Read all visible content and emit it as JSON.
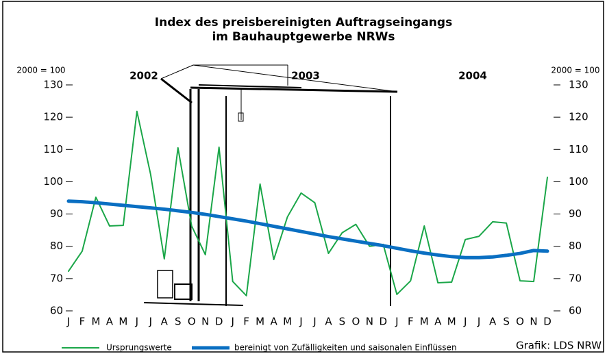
{
  "chart_data": {
    "type": "line",
    "title": "Index des preisbereinigten Auftragseingangs",
    "subtitle": "im Bauhauptgewerbe NRWs",
    "y_label": "2000 = 100",
    "y2_label": "2000 = 100",
    "annotations": [
      "2002",
      "2003",
      "2004"
    ],
    "source": "Grafik: LDS NRW",
    "categories": [
      "J",
      "F",
      "M",
      "A",
      "M",
      "J",
      "J",
      "A",
      "S",
      "O",
      "N",
      "D",
      "J",
      "F",
      "M",
      "A",
      "M",
      "J",
      "J",
      "A",
      "S",
      "O",
      "N",
      "D",
      "J",
      "F",
      "M",
      "A",
      "M",
      "J",
      "J",
      "A",
      "S",
      "O",
      "N",
      "D"
    ],
    "series": [
      {
        "name": "Ursprungswerte",
        "color": "#1aa648",
        "values": [
          72.3,
          78.5,
          95.2,
          86.3,
          86.5,
          121.8,
          102.3,
          76.1,
          110.5,
          86.3,
          77.4,
          110.7,
          69.1,
          64.7,
          99.3,
          75.9,
          89.1,
          96.5,
          93.5,
          77.8,
          84.2,
          86.8,
          80,
          80.6,
          65.1,
          69.3,
          86.3,
          68.7,
          68.9,
          82.1,
          83.1,
          87.6,
          87.2,
          69.3,
          69.1,
          101.4
        ]
      },
      {
        "name": "bereinigt von Zufälligkeiten und saisonalen Einflüssen",
        "color": "#0a6fc2",
        "values": [
          94,
          93.8,
          93.5,
          93.1,
          92.7,
          92.3,
          91.9,
          91.5,
          91,
          90.5,
          89.9,
          89.2,
          88.5,
          87.8,
          87,
          86.2,
          85.4,
          84.6,
          83.8,
          83,
          82.3,
          81.6,
          80.9,
          80.2,
          79.4,
          78.6,
          77.9,
          77.3,
          76.8,
          76.5,
          76.5,
          76.7,
          77.2,
          77.8,
          78.7,
          78.5
        ]
      }
    ],
    "ylim": [
      60,
      130
    ],
    "yticks": [
      60,
      70,
      80,
      90,
      100,
      110,
      120,
      130
    ],
    "y2lim": [
      60,
      130
    ],
    "y2ticks": [
      60,
      70,
      80,
      90,
      100,
      110,
      120,
      130
    ]
  }
}
